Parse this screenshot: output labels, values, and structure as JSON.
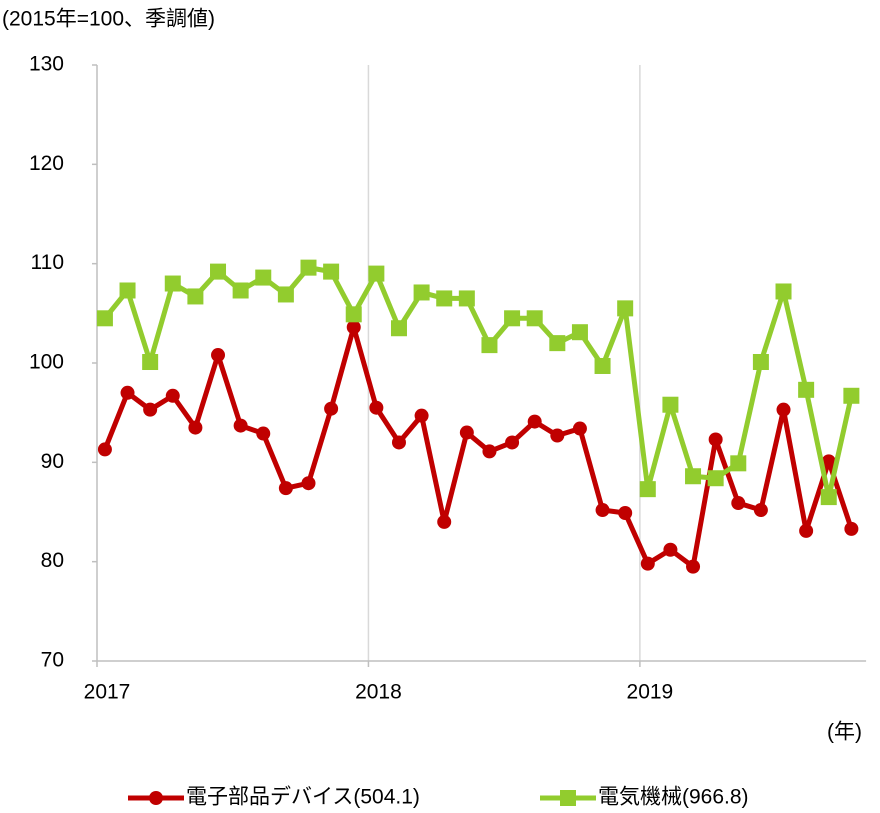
{
  "chart_data": {
    "type": "line",
    "subtitle": "(2015年=100、季調値)",
    "x_label": "(年)",
    "categories": [
      "2017",
      null,
      null,
      null,
      null,
      null,
      null,
      null,
      null,
      null,
      null,
      null,
      "2018",
      null,
      null,
      null,
      null,
      null,
      null,
      null,
      null,
      null,
      null,
      null,
      "2019",
      null,
      null,
      null,
      null,
      null,
      null,
      null,
      null,
      null
    ],
    "series": [
      {
        "name": "電子部品デバイス(504.1)",
        "color": "#c00000",
        "marker": "circle",
        "values": [
          91.3,
          97.0,
          95.3,
          96.7,
          93.5,
          100.8,
          93.7,
          92.9,
          87.4,
          87.9,
          95.4,
          103.6,
          95.5,
          92.0,
          94.7,
          84.0,
          93.0,
          91.1,
          92.0,
          94.1,
          92.7,
          93.4,
          85.2,
          84.9,
          79.8,
          81.2,
          79.5,
          92.3,
          85.9,
          85.2,
          95.3,
          83.1,
          90.1,
          83.3
        ]
      },
      {
        "name": "電気機械(966.8)",
        "color": "#92cc2e",
        "marker": "square",
        "values": [
          104.5,
          107.3,
          100.1,
          108.0,
          106.7,
          109.2,
          107.3,
          108.6,
          106.9,
          109.6,
          109.2,
          104.9,
          109.0,
          103.5,
          107.1,
          106.5,
          106.5,
          101.8,
          104.5,
          104.5,
          102.0,
          103.1,
          99.7,
          105.5,
          87.3,
          95.8,
          88.6,
          88.4,
          89.9,
          100.1,
          107.2,
          97.3,
          86.5,
          96.7
        ]
      }
    ],
    "ylim": [
      70,
      130
    ],
    "yticks": [
      70,
      80,
      90,
      100,
      110,
      120,
      130
    ],
    "x_grid": true,
    "legend": "bottom"
  }
}
